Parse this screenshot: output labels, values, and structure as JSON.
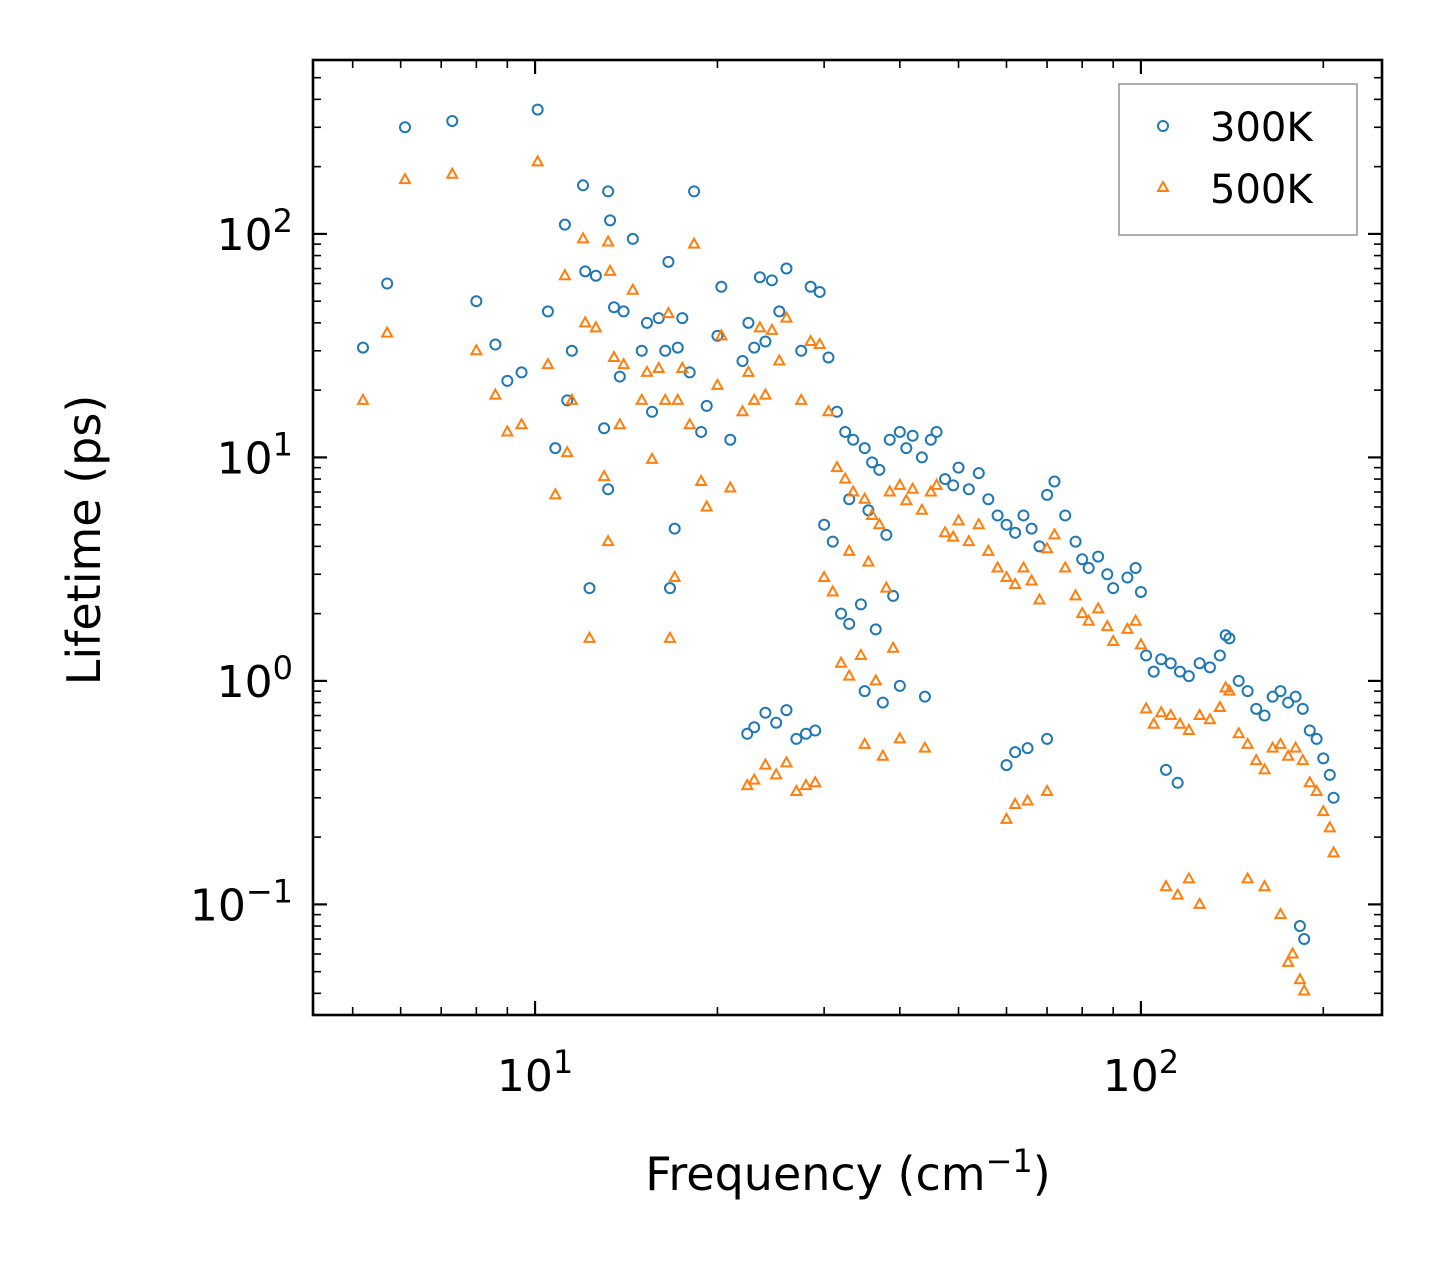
{
  "chart_data": {
    "type": "scatter",
    "xscale": "log",
    "yscale": "log",
    "xlabel": "Frequency (cm",
    "xlabel_sup": "−1",
    "xlabel_end": ")",
    "ylabel": "Lifetime (ps)",
    "xlim": [
      4.3,
      250
    ],
    "ylim": [
      0.032,
      600
    ],
    "x_major_ticks": [
      {
        "value": 10,
        "base": "10",
        "exp": "1"
      },
      {
        "value": 100,
        "base": "10",
        "exp": "2"
      }
    ],
    "y_major_ticks": [
      {
        "value": 0.1,
        "base": "10",
        "exp": "−1"
      },
      {
        "value": 1,
        "base": "10",
        "exp": "0"
      },
      {
        "value": 10,
        "base": "10",
        "exp": "1"
      },
      {
        "value": 100,
        "base": "10",
        "exp": "2"
      }
    ],
    "legend": {
      "position": "top-right"
    },
    "series": [
      {
        "name": "300K",
        "marker": "circle-open",
        "color": "#1f77b4",
        "points": [
          [
            5.2,
            31
          ],
          [
            5.7,
            60
          ],
          [
            6.1,
            300
          ],
          [
            7.3,
            320
          ],
          [
            8.0,
            50
          ],
          [
            8.6,
            32
          ],
          [
            9.0,
            22
          ],
          [
            9.5,
            24
          ],
          [
            10.1,
            360
          ],
          [
            10.5,
            45
          ],
          [
            10.8,
            11
          ],
          [
            11.2,
            110
          ],
          [
            11.3,
            18
          ],
          [
            11.5,
            30
          ],
          [
            12.0,
            165
          ],
          [
            12.1,
            68
          ],
          [
            12.3,
            2.6
          ],
          [
            12.6,
            65
          ],
          [
            13.0,
            13.5
          ],
          [
            13.2,
            155
          ],
          [
            13.2,
            7.2
          ],
          [
            13.3,
            115
          ],
          [
            13.5,
            47
          ],
          [
            13.8,
            23
          ],
          [
            14.0,
            45
          ],
          [
            14.5,
            95
          ],
          [
            15.0,
            30
          ],
          [
            15.3,
            40
          ],
          [
            15.6,
            16
          ],
          [
            16.0,
            42
          ],
          [
            16.4,
            30
          ],
          [
            16.6,
            75
          ],
          [
            16.7,
            2.6
          ],
          [
            17.0,
            4.8
          ],
          [
            17.2,
            31
          ],
          [
            17.5,
            42
          ],
          [
            18.0,
            24
          ],
          [
            18.3,
            155
          ],
          [
            18.8,
            13
          ],
          [
            19.2,
            17
          ],
          [
            20.0,
            35
          ],
          [
            20.3,
            58
          ],
          [
            21.0,
            12
          ],
          [
            22.0,
            27
          ],
          [
            22.5,
            40
          ],
          [
            23.0,
            31
          ],
          [
            23.5,
            64
          ],
          [
            24.0,
            33
          ],
          [
            24.6,
            62
          ],
          [
            25.3,
            45
          ],
          [
            22.4,
            0.58
          ],
          [
            23.0,
            0.62
          ],
          [
            24.0,
            0.72
          ],
          [
            25.0,
            0.65
          ],
          [
            26.0,
            0.74
          ],
          [
            27.0,
            0.55
          ],
          [
            28.0,
            0.58
          ],
          [
            29.0,
            0.6
          ],
          [
            26.0,
            70
          ],
          [
            27.5,
            30
          ],
          [
            28.5,
            58
          ],
          [
            29.5,
            55
          ],
          [
            30.5,
            28
          ],
          [
            31.5,
            16
          ],
          [
            32.5,
            13
          ],
          [
            33.5,
            12
          ],
          [
            35.0,
            11
          ],
          [
            36.0,
            9.5
          ],
          [
            37.0,
            8.8
          ],
          [
            38.5,
            12
          ],
          [
            40.0,
            13
          ],
          [
            41.0,
            11
          ],
          [
            42.0,
            12.5
          ],
          [
            43.5,
            10
          ],
          [
            45.0,
            12
          ],
          [
            46.0,
            13
          ],
          [
            47.5,
            8
          ],
          [
            49.0,
            7.5
          ],
          [
            50.0,
            9
          ],
          [
            52.0,
            7.2
          ],
          [
            54.0,
            8.5
          ],
          [
            56.0,
            6.5
          ],
          [
            58.0,
            5.5
          ],
          [
            60.0,
            5
          ],
          [
            62.0,
            4.6
          ],
          [
            64.0,
            5.5
          ],
          [
            66.0,
            4.8
          ],
          [
            68.0,
            4
          ],
          [
            70.0,
            6.8
          ],
          [
            72.0,
            7.8
          ],
          [
            75.0,
            5.5
          ],
          [
            78.0,
            4.2
          ],
          [
            80.0,
            3.5
          ],
          [
            82.0,
            3.2
          ],
          [
            85.0,
            3.6
          ],
          [
            88.0,
            3.0
          ],
          [
            90.0,
            2.6
          ],
          [
            95.0,
            2.9
          ],
          [
            98.0,
            3.2
          ],
          [
            100.0,
            2.5
          ],
          [
            102.0,
            1.3
          ],
          [
            105.0,
            1.1
          ],
          [
            108.0,
            1.25
          ],
          [
            112.0,
            1.2
          ],
          [
            116.0,
            1.1
          ],
          [
            120.0,
            1.05
          ],
          [
            125.0,
            1.2
          ],
          [
            130.0,
            1.15
          ],
          [
            135.0,
            1.3
          ],
          [
            138.0,
            1.6
          ],
          [
            140.0,
            1.55
          ],
          [
            145.0,
            1.0
          ],
          [
            150.0,
            0.9
          ],
          [
            155.0,
            0.75
          ],
          [
            160.0,
            0.7
          ],
          [
            165.0,
            0.85
          ],
          [
            170.0,
            0.9
          ],
          [
            175.0,
            0.8
          ],
          [
            180.0,
            0.85
          ],
          [
            185.0,
            0.75
          ],
          [
            190.0,
            0.6
          ],
          [
            195.0,
            0.55
          ],
          [
            200.0,
            0.45
          ],
          [
            205.0,
            0.38
          ],
          [
            208.0,
            0.3
          ],
          [
            183.0,
            0.08
          ],
          [
            186.0,
            0.07
          ],
          [
            60.0,
            0.42
          ],
          [
            62.0,
            0.48
          ],
          [
            65.0,
            0.5
          ],
          [
            70.0,
            0.55
          ],
          [
            110.0,
            0.4
          ],
          [
            115.0,
            0.35
          ],
          [
            35.0,
            0.9
          ],
          [
            37.5,
            0.8
          ],
          [
            40.0,
            0.95
          ],
          [
            44.0,
            0.85
          ],
          [
            32.0,
            2.0
          ],
          [
            33.0,
            1.8
          ],
          [
            34.5,
            2.2
          ],
          [
            36.5,
            1.7
          ],
          [
            39.0,
            2.4
          ],
          [
            30.0,
            5.0
          ],
          [
            31.0,
            4.2
          ],
          [
            33.0,
            6.5
          ],
          [
            35.5,
            5.8
          ],
          [
            38.0,
            4.5
          ]
        ]
      },
      {
        "name": "500K",
        "marker": "triangle-open",
        "color": "#ff7f0e",
        "points": [
          [
            5.2,
            18
          ],
          [
            5.7,
            36
          ],
          [
            6.1,
            175
          ],
          [
            7.3,
            185
          ],
          [
            8.0,
            30
          ],
          [
            8.6,
            19
          ],
          [
            9.0,
            13
          ],
          [
            9.5,
            14
          ],
          [
            10.1,
            210
          ],
          [
            10.5,
            26
          ],
          [
            10.8,
            6.8
          ],
          [
            11.2,
            65
          ],
          [
            11.3,
            10.5
          ],
          [
            11.5,
            18
          ],
          [
            12.0,
            95
          ],
          [
            12.1,
            40
          ],
          [
            12.3,
            1.55
          ],
          [
            12.6,
            38
          ],
          [
            13.0,
            8.2
          ],
          [
            13.2,
            92
          ],
          [
            13.2,
            4.2
          ],
          [
            13.3,
            68
          ],
          [
            13.5,
            28
          ],
          [
            13.8,
            14
          ],
          [
            14.0,
            26
          ],
          [
            14.5,
            56
          ],
          [
            15.0,
            18
          ],
          [
            15.3,
            24
          ],
          [
            15.6,
            9.8
          ],
          [
            16.0,
            25
          ],
          [
            16.4,
            18
          ],
          [
            16.6,
            44
          ],
          [
            16.7,
            1.55
          ],
          [
            17.0,
            2.9
          ],
          [
            17.2,
            18
          ],
          [
            17.5,
            25
          ],
          [
            18.0,
            14
          ],
          [
            18.3,
            90
          ],
          [
            18.8,
            7.8
          ],
          [
            19.2,
            6
          ],
          [
            20.0,
            21
          ],
          [
            20.3,
            35
          ],
          [
            21.0,
            7.3
          ],
          [
            22.0,
            16
          ],
          [
            22.5,
            24
          ],
          [
            23.0,
            18
          ],
          [
            23.5,
            38
          ],
          [
            24.0,
            19
          ],
          [
            24.6,
            37
          ],
          [
            25.3,
            27
          ],
          [
            22.4,
            0.34
          ],
          [
            23.0,
            0.36
          ],
          [
            24.0,
            0.42
          ],
          [
            25.0,
            0.38
          ],
          [
            26.0,
            0.43
          ],
          [
            27.0,
            0.32
          ],
          [
            28.0,
            0.34
          ],
          [
            29.0,
            0.35
          ],
          [
            26.0,
            42
          ],
          [
            27.5,
            18
          ],
          [
            28.5,
            33
          ],
          [
            29.5,
            32
          ],
          [
            30.5,
            16
          ],
          [
            31.5,
            9
          ],
          [
            32.5,
            8
          ],
          [
            33.5,
            7
          ],
          [
            35.0,
            6.5
          ],
          [
            36.0,
            5.5
          ],
          [
            37.0,
            5
          ],
          [
            38.5,
            7
          ],
          [
            40.0,
            7.5
          ],
          [
            41.0,
            6.4
          ],
          [
            42.0,
            7.2
          ],
          [
            43.5,
            5.8
          ],
          [
            45.0,
            7
          ],
          [
            46.0,
            7.5
          ],
          [
            47.5,
            4.6
          ],
          [
            49.0,
            4.4
          ],
          [
            50.0,
            5.2
          ],
          [
            52.0,
            4.2
          ],
          [
            54.0,
            5
          ],
          [
            56.0,
            3.8
          ],
          [
            58.0,
            3.2
          ],
          [
            60.0,
            2.9
          ],
          [
            62.0,
            2.7
          ],
          [
            64.0,
            3.2
          ],
          [
            66.0,
            2.8
          ],
          [
            68.0,
            2.3
          ],
          [
            70.0,
            3.9
          ],
          [
            72.0,
            4.5
          ],
          [
            75.0,
            3.2
          ],
          [
            78.0,
            2.4
          ],
          [
            80.0,
            2.0
          ],
          [
            82.0,
            1.85
          ],
          [
            85.0,
            2.1
          ],
          [
            88.0,
            1.75
          ],
          [
            90.0,
            1.5
          ],
          [
            95.0,
            1.7
          ],
          [
            98.0,
            1.85
          ],
          [
            100.0,
            1.45
          ],
          [
            102.0,
            0.75
          ],
          [
            105.0,
            0.64
          ],
          [
            108.0,
            0.72
          ],
          [
            112.0,
            0.7
          ],
          [
            116.0,
            0.64
          ],
          [
            120.0,
            0.6
          ],
          [
            125.0,
            0.7
          ],
          [
            130.0,
            0.67
          ],
          [
            135.0,
            0.76
          ],
          [
            138.0,
            0.93
          ],
          [
            140.0,
            0.9
          ],
          [
            145.0,
            0.58
          ],
          [
            150.0,
            0.52
          ],
          [
            155.0,
            0.44
          ],
          [
            160.0,
            0.4
          ],
          [
            165.0,
            0.5
          ],
          [
            170.0,
            0.52
          ],
          [
            175.0,
            0.46
          ],
          [
            180.0,
            0.5
          ],
          [
            185.0,
            0.44
          ],
          [
            190.0,
            0.35
          ],
          [
            195.0,
            0.32
          ],
          [
            200.0,
            0.26
          ],
          [
            205.0,
            0.22
          ],
          [
            208.0,
            0.17
          ],
          [
            183.0,
            0.046
          ],
          [
            186.0,
            0.041
          ],
          [
            60.0,
            0.24
          ],
          [
            62.0,
            0.28
          ],
          [
            65.0,
            0.29
          ],
          [
            70.0,
            0.32
          ],
          [
            110.0,
            0.12
          ],
          [
            115.0,
            0.11
          ],
          [
            120.0,
            0.13
          ],
          [
            125.0,
            0.1
          ],
          [
            35.0,
            0.52
          ],
          [
            37.5,
            0.46
          ],
          [
            40.0,
            0.55
          ],
          [
            44.0,
            0.5
          ],
          [
            32.0,
            1.2
          ],
          [
            33.0,
            1.05
          ],
          [
            34.5,
            1.3
          ],
          [
            36.5,
            1.0
          ],
          [
            39.0,
            1.4
          ],
          [
            30.0,
            2.9
          ],
          [
            31.0,
            2.5
          ],
          [
            33.0,
            3.8
          ],
          [
            35.5,
            3.4
          ],
          [
            38.0,
            2.6
          ],
          [
            150.0,
            0.13
          ],
          [
            160.0,
            0.12
          ],
          [
            170.0,
            0.09
          ],
          [
            175.0,
            0.055
          ],
          [
            178.0,
            0.06
          ]
        ]
      }
    ]
  }
}
